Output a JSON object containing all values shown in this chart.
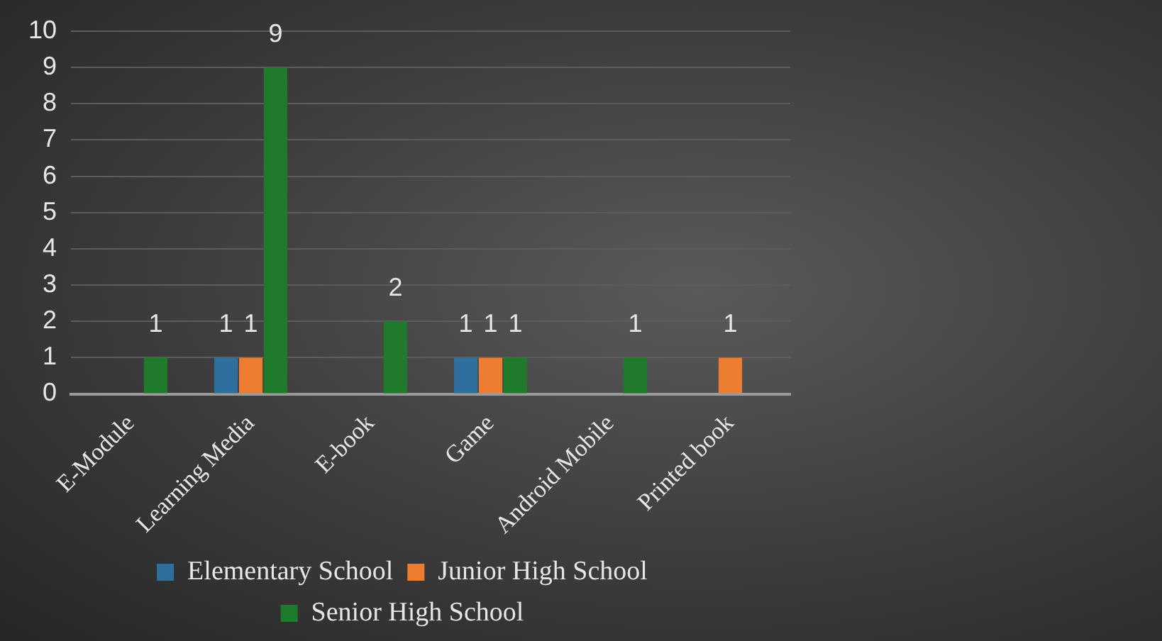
{
  "chart_data": {
    "type": "bar",
    "categories": [
      "E-Module",
      "Learning Media",
      "E-book",
      "Game",
      "Android Mobile",
      "Printed book"
    ],
    "series": [
      {
        "name": "Elementary School",
        "color": "#2e6f9e",
        "values": [
          null,
          1,
          null,
          1,
          null,
          null
        ]
      },
      {
        "name": "Junior High School",
        "color": "#ed7d31",
        "values": [
          null,
          1,
          null,
          1,
          null,
          1
        ]
      },
      {
        "name": "Senior High School",
        "color": "#1f7a2c",
        "values": [
          1,
          9,
          2,
          1,
          1,
          null
        ]
      }
    ],
    "ylim": [
      0,
      10
    ],
    "yticks": [
      0,
      1,
      2,
      3,
      4,
      5,
      6,
      7,
      8,
      9,
      10
    ],
    "grid": "y",
    "legend": "bottom",
    "data_labels": true
  }
}
